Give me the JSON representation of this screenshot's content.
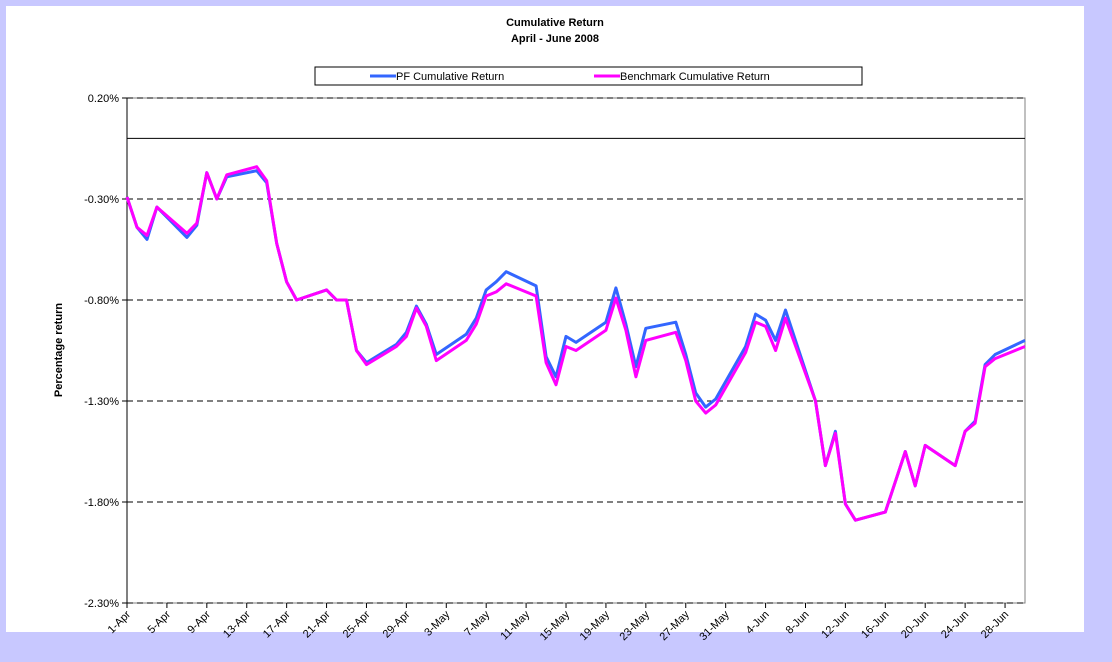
{
  "chart_data": {
    "type": "line",
    "title": "Cumulative Return",
    "subtitle": "April - June 2008",
    "ylabel": "Percentage return",
    "x": [
      "1-Apr",
      "2-Apr",
      "3-Apr",
      "4-Apr",
      "7-Apr",
      "8-Apr",
      "9-Apr",
      "10-Apr",
      "11-Apr",
      "14-Apr",
      "15-Apr",
      "16-Apr",
      "17-Apr",
      "18-Apr",
      "21-Apr",
      "22-Apr",
      "23-Apr",
      "24-Apr",
      "25-Apr",
      "28-Apr",
      "29-Apr",
      "30-Apr",
      "1-May",
      "2-May",
      "5-May",
      "6-May",
      "7-May",
      "8-May",
      "9-May",
      "12-May",
      "13-May",
      "14-May",
      "15-May",
      "16-May",
      "19-May",
      "20-May",
      "21-May",
      "22-May",
      "23-May",
      "26-May",
      "27-May",
      "28-May",
      "29-May",
      "30-May",
      "2-Jun",
      "3-Jun",
      "4-Jun",
      "5-Jun",
      "6-Jun",
      "9-Jun",
      "10-Jun",
      "11-Jun",
      "12-Jun",
      "13-Jun",
      "16-Jun",
      "17-Jun",
      "18-Jun",
      "19-Jun",
      "20-Jun",
      "23-Jun",
      "24-Jun",
      "25-Jun",
      "26-Jun",
      "27-Jun",
      "30-Jun"
    ],
    "series": [
      {
        "name": "PF Cumulative Return",
        "color": "#3366ff",
        "values": [
          -0.29,
          -0.44,
          -0.5,
          -0.34,
          -0.49,
          -0.43,
          -0.17,
          -0.3,
          -0.19,
          -0.16,
          -0.22,
          -0.52,
          -0.71,
          -0.8,
          -0.75,
          -0.8,
          -0.8,
          -1.05,
          -1.11,
          -1.02,
          -0.96,
          -0.83,
          -0.92,
          -1.07,
          -0.97,
          -0.89,
          -0.75,
          -0.71,
          -0.66,
          -0.73,
          -1.08,
          -1.18,
          -0.98,
          -1.01,
          -0.91,
          -0.74,
          -0.92,
          -1.13,
          -0.94,
          -0.91,
          -1.07,
          -1.26,
          -1.33,
          -1.29,
          -1.03,
          -0.87,
          -0.9,
          -1.0,
          -0.85,
          -1.3,
          -1.62,
          -1.45,
          -1.81,
          -1.89,
          -1.85,
          -1.7,
          -1.55,
          -1.72,
          -1.52,
          -1.62,
          -1.45,
          -1.4,
          -1.12,
          -1.07,
          -1.0
        ]
      },
      {
        "name": "Benchmark Cumulative Return",
        "color": "#ff00ff",
        "values": [
          -0.29,
          -0.44,
          -0.48,
          -0.34,
          -0.47,
          -0.42,
          -0.17,
          -0.3,
          -0.18,
          -0.14,
          -0.21,
          -0.52,
          -0.71,
          -0.8,
          -0.75,
          -0.8,
          -0.8,
          -1.05,
          -1.12,
          -1.03,
          -0.98,
          -0.84,
          -0.93,
          -1.1,
          -1.0,
          -0.92,
          -0.78,
          -0.76,
          -0.72,
          -0.78,
          -1.11,
          -1.22,
          -1.03,
          -1.05,
          -0.95,
          -0.79,
          -0.95,
          -1.18,
          -1.0,
          -0.96,
          -1.1,
          -1.3,
          -1.36,
          -1.32,
          -1.06,
          -0.91,
          -0.93,
          -1.05,
          -0.89,
          -1.3,
          -1.62,
          -1.46,
          -1.81,
          -1.89,
          -1.85,
          -1.7,
          -1.55,
          -1.72,
          -1.52,
          -1.62,
          -1.45,
          -1.41,
          -1.13,
          -1.09,
          -1.03
        ]
      }
    ],
    "xlim": [
      "1-Apr",
      "30-Jun"
    ],
    "xticks": [
      "1-Apr",
      "5-Apr",
      "9-Apr",
      "13-Apr",
      "17-Apr",
      "21-Apr",
      "25-Apr",
      "29-Apr",
      "3-May",
      "7-May",
      "11-May",
      "15-May",
      "19-May",
      "23-May",
      "27-May",
      "31-May",
      "4-Jun",
      "8-Jun",
      "12-Jun",
      "16-Jun",
      "20-Jun",
      "24-Jun",
      "28-Jun"
    ],
    "ylim": [
      -2.3,
      0.2
    ],
    "yticks": [
      {
        "value": 0.2,
        "label": "0.20%"
      },
      {
        "value": -0.3,
        "label": "-0.30%"
      },
      {
        "value": -0.8,
        "label": "-0.80%"
      },
      {
        "value": -1.3,
        "label": "-1.30%"
      },
      {
        "value": -1.8,
        "label": "-1.80%"
      },
      {
        "value": -2.3,
        "label": "-2.30%"
      }
    ],
    "grid": true,
    "legend": "top"
  }
}
